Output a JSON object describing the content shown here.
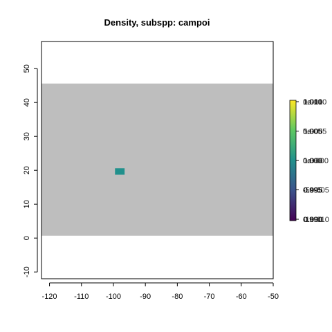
{
  "chart_data": {
    "type": "heatmap",
    "title": "Density, subspp: campoi",
    "xlabel": "",
    "ylabel": "",
    "xlim": [
      -122.5,
      -50
    ],
    "ylim": [
      -12,
      58
    ],
    "x_ticks": [
      -120,
      -110,
      -100,
      -90,
      -80,
      -70,
      -60,
      -50
    ],
    "y_ticks": [
      -10,
      0,
      10,
      20,
      30,
      40,
      50
    ],
    "grid": false,
    "background_region": {
      "x": [
        -122.5,
        -50
      ],
      "y": [
        0.7,
        45.6
      ],
      "color": "#bebebe",
      "meaning": "NA"
    },
    "cells": [
      {
        "x": [
          -99.5,
          -96.5
        ],
        "y": [
          18.7,
          20.6
        ],
        "value": 0.0,
        "color": "#21908c"
      }
    ],
    "colorbar": {
      "palette": "viridis",
      "colors": [
        "#440154",
        "#3b528b",
        "#21908c",
        "#5dc863",
        "#fde725"
      ],
      "ticks_a": [
        "1e-010",
        "5e-005",
        "0e+000",
        "-5e-005",
        "-1e-010"
      ],
      "ticks_b": [
        "0.010",
        "0.005",
        "0.000",
        "0.995",
        "0.990"
      ],
      "ticks_c": [
        "1.010",
        "1.005",
        "1.000",
        "0.995",
        "0.990"
      ]
    }
  }
}
